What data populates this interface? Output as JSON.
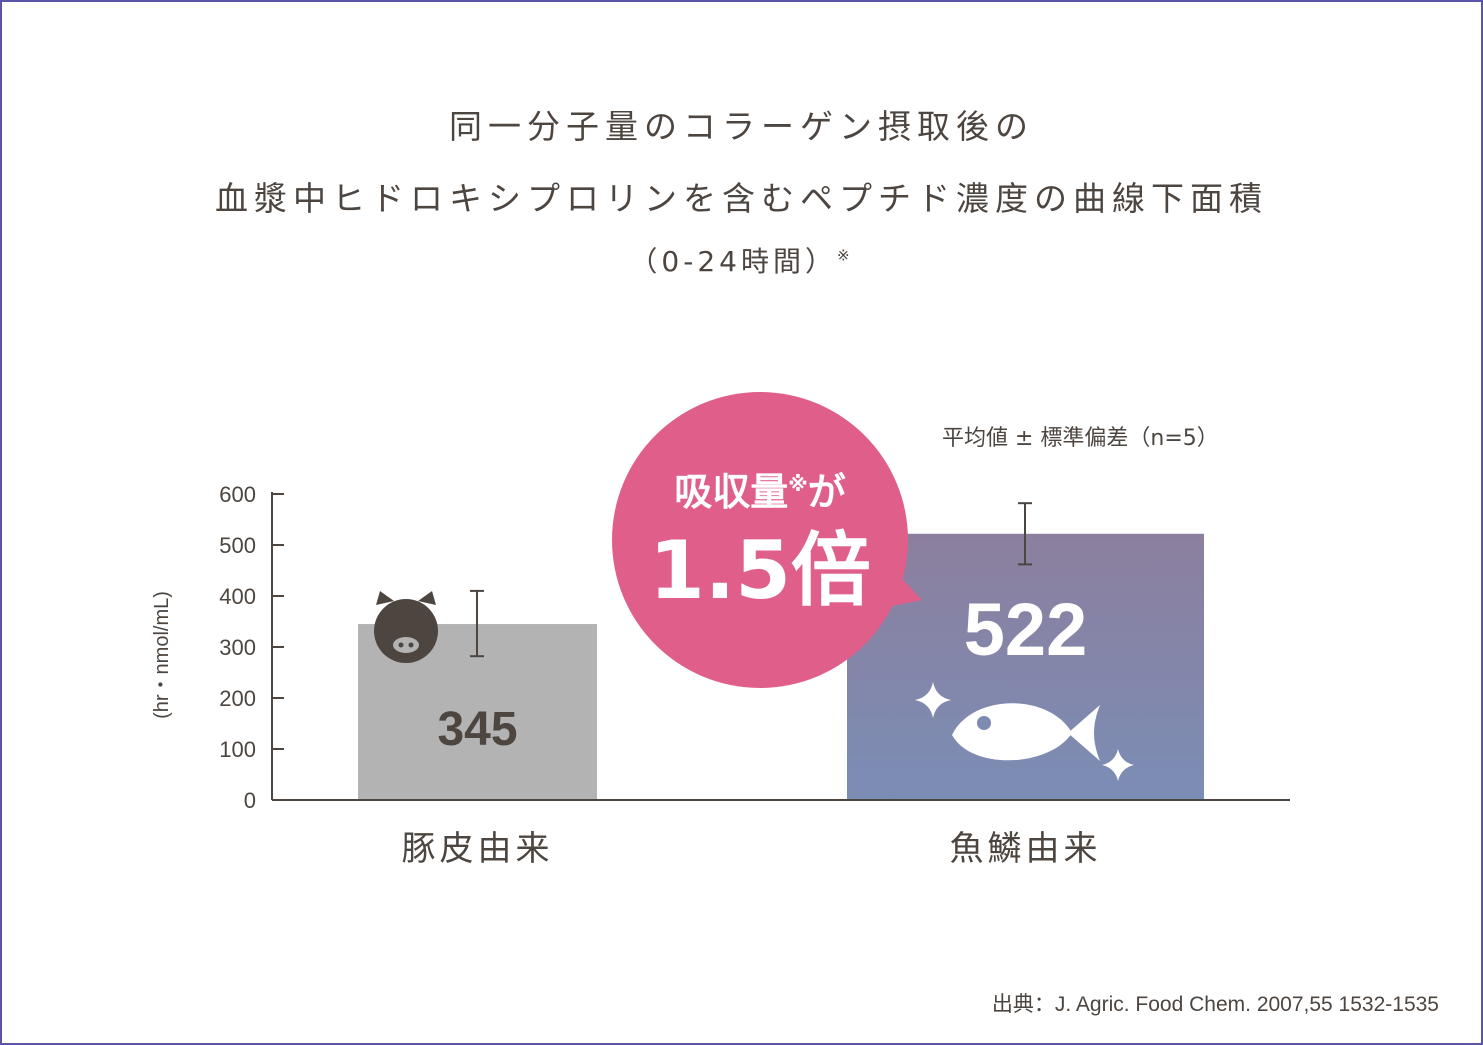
{
  "title": {
    "line1": "同一分子量のコラーゲン摂取後の",
    "line2": "血漿中ヒドロキシプロリンを含むペプチド濃度の曲線下面積",
    "line3": "（0-24時間）",
    "line3_mark": "※"
  },
  "note": "平均値 ± 標準偏差（n=5）",
  "source": "出典：J. Agric. Food Chem. 2007,55 1532-1535",
  "callout": {
    "line1": "吸収量",
    "mark": "※",
    "line1_suffix": "が",
    "big": "1.5倍",
    "color": "#e05f8a"
  },
  "icons": {
    "pig": "pig-icon",
    "fish": "fish-icon",
    "sparkle": "sparkle-icon"
  },
  "chart_data": {
    "type": "bar",
    "categories": [
      "豚皮由来",
      "魚鱗由来"
    ],
    "values": [
      345,
      522
    ],
    "errors": [
      [
        282,
        410
      ],
      [
        462,
        582
      ]
    ],
    "value_labels": [
      "345",
      "522"
    ],
    "ylabel": "(hr・nmol/mL)",
    "ylim": [
      0,
      600
    ],
    "yticks": [
      "0",
      "100",
      "200",
      "300",
      "400",
      "500",
      "600"
    ],
    "colors": {
      "bar1": "#b3b3b3",
      "bar2_top": "#8c7f9e",
      "bar2_bottom": "#7b8db5",
      "axis": "#4d4540"
    }
  }
}
